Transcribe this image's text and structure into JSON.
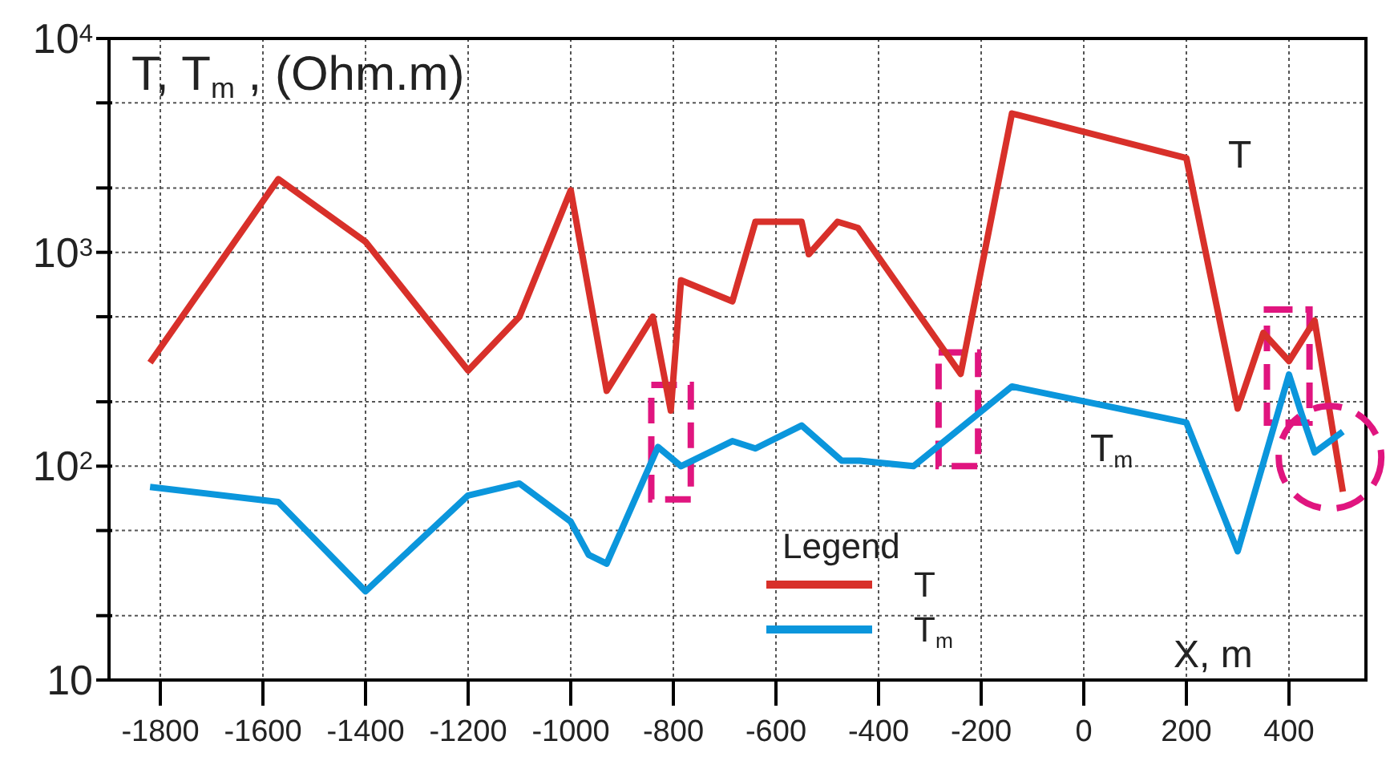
{
  "chart_data": {
    "type": "line",
    "ylabel": "T, T$_{m}$, (Ohm.m)",
    "xlabel": "X, m",
    "legend_title": "Legend",
    "log": "y",
    "grid": true,
    "legend": "bottom",
    "marker": "none",
    "line_style": "solid",
    "xlim": [
      -1900,
      550
    ],
    "xticks": [
      -1800,
      -1600,
      -1400,
      -1200,
      -1000,
      -800,
      -600,
      -400,
      -200,
      0,
      200,
      400
    ],
    "ylim": [
      10,
      10000
    ],
    "yticks": [
      {
        "value": 10,
        "label": "10"
      },
      {
        "value": 20,
        "label": null
      },
      {
        "value": 50,
        "label": null
      },
      {
        "value": 100,
        "label": "10$^{2}$"
      },
      {
        "value": 200,
        "label": null
      },
      {
        "value": 500,
        "label": null
      },
      {
        "value": 1000,
        "label": "10$^{3}$"
      },
      {
        "value": 2000,
        "label": null
      },
      {
        "value": 5000,
        "label": null
      },
      {
        "value": 10000,
        "label": "10$^{4}$"
      }
    ],
    "series": [
      {
        "name": "T",
        "color": "#d8302a",
        "x": [
          -1820,
          -1570,
          -1400,
          -1200,
          -1100,
          -1000,
          -930,
          -840,
          -805,
          -785,
          -685,
          -640,
          -550,
          -536,
          -480,
          -440,
          -240,
          -140,
          200,
          300,
          350,
          400,
          450,
          505
        ],
        "values": [
          305,
          2200,
          1120,
          280,
          500,
          1950,
          225,
          500,
          182,
          740,
          590,
          1390,
          1390,
          980,
          1390,
          1300,
          270,
          4460,
          2760,
          186,
          420,
          310,
          480,
          76
        ]
      },
      {
        "name": "T$_{m}$",
        "color": "#0b96dc",
        "x": [
          -1820,
          -1570,
          -1400,
          -1200,
          -1100,
          -1000,
          -965,
          -930,
          -830,
          -785,
          -685,
          -640,
          -550,
          -472,
          -437,
          -332,
          -140,
          200,
          300,
          400,
          425,
          450,
          505
        ],
        "values": [
          80,
          68,
          26,
          73,
          83,
          55,
          38.5,
          35,
          123,
          100,
          131,
          121,
          155,
          106,
          106,
          100,
          236,
          160,
          40,
          268,
          174,
          116,
          145
        ]
      }
    ]
  }
}
